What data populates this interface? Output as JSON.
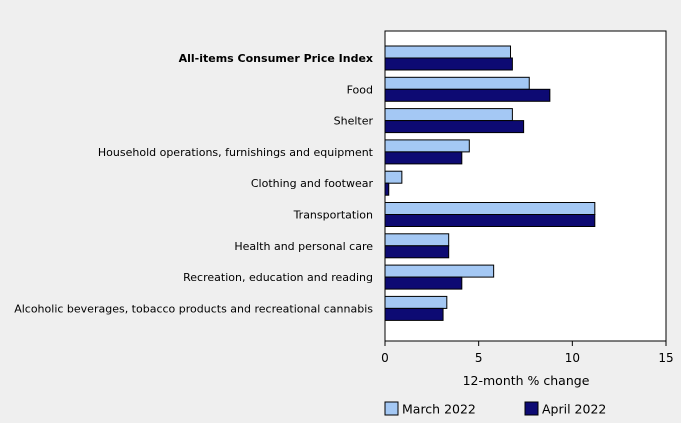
{
  "chart_data": {
    "type": "bar",
    "orientation": "horizontal",
    "categories": [
      "All-items Consumer Price Index",
      "Food",
      "Shelter",
      "Household operations, furnishings and equipment",
      "Clothing and footwear",
      "Transportation",
      "Health and personal care",
      "Recreation, education and reading",
      "Alcoholic beverages, tobacco products and recreational cannabis"
    ],
    "bold_categories": [
      "All-items Consumer Price Index"
    ],
    "series": [
      {
        "name": "March 2022",
        "color": "#a4c8f4",
        "values": [
          6.7,
          7.7,
          6.8,
          4.5,
          0.9,
          11.2,
          3.4,
          5.8,
          3.3
        ]
      },
      {
        "name": "April 2022",
        "color": "#0d0a73",
        "values": [
          6.8,
          8.8,
          7.4,
          4.1,
          0.2,
          11.2,
          3.4,
          4.1,
          3.1
        ]
      }
    ],
    "xlabel": "12-month % change",
    "xlim": [
      0,
      15
    ],
    "xticks": [
      0,
      5,
      10,
      15
    ],
    "grid": false,
    "legend_position": "bottom"
  }
}
